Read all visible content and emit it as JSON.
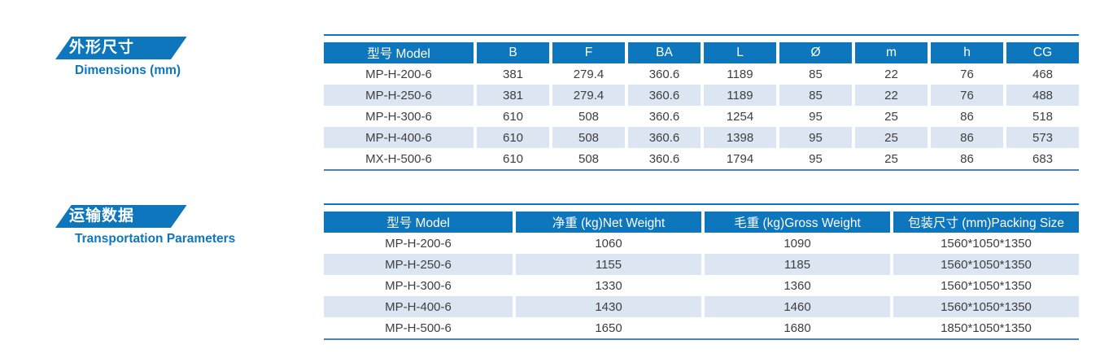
{
  "colors": {
    "header_blue": "#0d76bc",
    "stripe": "#dce6f2",
    "bottom_rule": "#4e80b9",
    "body_text": "#3e3e3e"
  },
  "sections": [
    {
      "banner_cn": "外形尺寸",
      "banner_en": "Dimensions (mm)",
      "table": {
        "headers": [
          "型号 Model",
          "B",
          "F",
          "BA",
          "L",
          "Ø",
          "m",
          "h",
          "CG"
        ],
        "rows": [
          [
            "MP-H-200-6",
            "381",
            "279.4",
            "360.6",
            "1189",
            "85",
            "22",
            "76",
            "468"
          ],
          [
            "MP-H-250-6",
            "381",
            "279.4",
            "360.6",
            "1189",
            "85",
            "22",
            "76",
            "488"
          ],
          [
            "MP-H-300-6",
            "610",
            "508",
            "360.6",
            "1254",
            "95",
            "25",
            "86",
            "518"
          ],
          [
            "MP-H-400-6",
            "610",
            "508",
            "360.6",
            "1398",
            "95",
            "25",
            "86",
            "573"
          ],
          [
            "MX-H-500-6",
            "610",
            "508",
            "360.6",
            "1794",
            "95",
            "25",
            "86",
            "683"
          ]
        ]
      }
    },
    {
      "banner_cn": "运输数据",
      "banner_en": "Transportation Parameters",
      "table": {
        "headers": [
          "型号 Model",
          "净重 (kg)Net Weight",
          "毛重 (kg)Gross Weight",
          "包装尺寸 (mm)Packing Size"
        ],
        "rows": [
          [
            "MP-H-200-6",
            "1060",
            "1090",
            "1560*1050*1350"
          ],
          [
            "MP-H-250-6",
            "1155",
            "1185",
            "1560*1050*1350"
          ],
          [
            "MP-H-300-6",
            "1330",
            "1360",
            "1560*1050*1350"
          ],
          [
            "MP-H-400-6",
            "1430",
            "1460",
            "1560*1050*1350"
          ],
          [
            "MP-H-500-6",
            "1650",
            "1680",
            "1850*1050*1350"
          ]
        ]
      }
    }
  ]
}
